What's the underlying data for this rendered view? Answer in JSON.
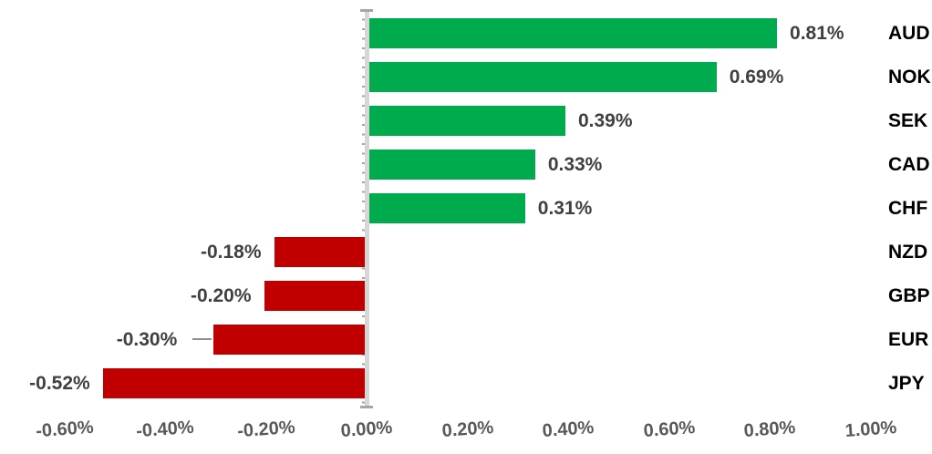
{
  "chart_data": {
    "type": "bar",
    "orientation": "horizontal",
    "title": "",
    "xlabel": "",
    "ylabel": "",
    "legend": "none",
    "grid": false,
    "categories": [
      "AUD",
      "NOK",
      "SEK",
      "CAD",
      "CHF",
      "NZD",
      "GBP",
      "EUR",
      "JPY"
    ],
    "values": [
      0.81,
      0.69,
      0.39,
      0.33,
      0.31,
      -0.18,
      -0.2,
      -0.3,
      -0.52
    ],
    "labels": [
      "0.81%",
      "0.69%",
      "0.39%",
      "0.33%",
      "0.31%",
      "-0.18%",
      "-0.20%",
      "-0.30%",
      "-0.52%"
    ],
    "value_label_position": "outside_end",
    "leader_line_category": "EUR",
    "colors": {
      "positive": "#00AB4E",
      "negative": "#C00000",
      "value_label": "#404040",
      "category_label": "#000000",
      "axis_line": "#D6D6D6",
      "axis_tick": "#A6A6A6",
      "axis_label": "#595959",
      "leader_line": "#8C8C8C",
      "background": "#FFFFFF"
    },
    "axis": {
      "min": -0.6,
      "max": 1.0,
      "step": 0.2,
      "tick_values": [
        -0.6,
        -0.4,
        -0.2,
        0.0,
        0.2,
        0.4,
        0.6,
        0.8,
        1.0
      ],
      "tick_labels": [
        "-0.60%",
        "-0.40%",
        "-0.20%",
        "0.00%",
        "0.20%",
        "0.40%",
        "0.60%",
        "0.80%",
        "1.00%"
      ]
    }
  }
}
